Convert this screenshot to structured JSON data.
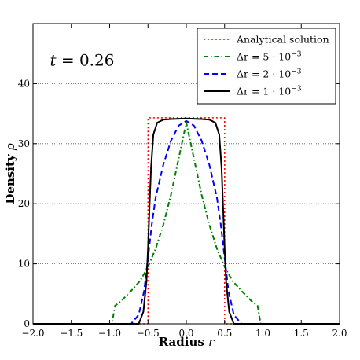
{
  "chart_data": {
    "type": "line",
    "xlabel": "Radius",
    "xlabel_var": "r",
    "ylabel": "Density",
    "ylabel_var": "ρ",
    "xlim": [
      -2.0,
      2.0
    ],
    "ylim": [
      0,
      50
    ],
    "xticks": [
      -2.0,
      -1.5,
      -1.0,
      -0.5,
      0.0,
      0.5,
      1.0,
      1.5,
      2.0
    ],
    "xtick_labels": [
      "−2.0",
      "−1.5",
      "−1.0",
      "−0.5",
      "0.0",
      "0.5",
      "1.0",
      "1.5",
      "2.0"
    ],
    "yticks": [
      0,
      10,
      20,
      30,
      40
    ],
    "ytick_labels": [
      "0",
      "10",
      "20",
      "30",
      "40"
    ],
    "grid": "y-dotted",
    "legend_position": "top-right",
    "annotation": {
      "text": "t = 0.26",
      "var": "t",
      "rest": " = 0.26",
      "x": -1.78,
      "y": 43
    },
    "series": [
      {
        "name": "Analytical solution",
        "color": "#ff0000",
        "style": "dotted",
        "x": [
          -2.0,
          -0.5,
          -0.5,
          0.5,
          0.5,
          2.0
        ],
        "y": [
          0,
          0,
          34.3,
          34.3,
          0,
          0
        ]
      },
      {
        "name": "Δr = 5 · 10⁻³",
        "label_base": "Δr = 5 · 10",
        "label_exp": "−3",
        "color": "#007f00",
        "style": "dashdot",
        "x": [
          -2.0,
          -0.97,
          -0.93,
          -0.85,
          -0.72,
          -0.6,
          -0.5,
          -0.4,
          -0.3,
          -0.2,
          -0.1,
          0.0,
          0.1,
          0.2,
          0.3,
          0.4,
          0.5,
          0.6,
          0.72,
          0.85,
          0.93,
          0.97,
          2.0
        ],
        "y": [
          0,
          0,
          3.0,
          3.8,
          5.5,
          7.2,
          9.5,
          12.5,
          16.5,
          21.5,
          27.5,
          33.5,
          27.5,
          21.5,
          16.5,
          12.5,
          9.5,
          7.2,
          5.5,
          3.8,
          3.0,
          0,
          0
        ]
      },
      {
        "name": "Δr = 2 · 10⁻³",
        "label_base": "Δr = 2 · 10",
        "label_exp": "−3",
        "color": "#0000ff",
        "style": "dashed",
        "x": [
          -2.0,
          -0.72,
          -0.62,
          -0.55,
          -0.5,
          -0.45,
          -0.4,
          -0.3,
          -0.2,
          -0.1,
          0.0,
          0.1,
          0.2,
          0.3,
          0.4,
          0.45,
          0.5,
          0.55,
          0.62,
          0.72,
          2.0
        ],
        "y": [
          0,
          0,
          1.5,
          5.5,
          11,
          16.5,
          21,
          26.5,
          30.5,
          33,
          33.8,
          33,
          30.5,
          26.5,
          21,
          16.5,
          11,
          5.5,
          1.5,
          0,
          0
        ]
      },
      {
        "name": "Δr = 1 · 10⁻³",
        "label_base": "Δr = 1 · 10",
        "label_exp": "−3",
        "color": "#000000",
        "style": "solid",
        "x": [
          -2.0,
          -0.62,
          -0.56,
          -0.52,
          -0.5,
          -0.48,
          -0.46,
          -0.43,
          -0.38,
          -0.3,
          -0.2,
          0.0,
          0.2,
          0.3,
          0.38,
          0.43,
          0.46,
          0.48,
          0.5,
          0.52,
          0.56,
          0.62,
          2.0
        ],
        "y": [
          0,
          0,
          2.0,
          7.0,
          12.5,
          19.5,
          26.0,
          31.5,
          33.5,
          34.0,
          34.1,
          34.2,
          34.1,
          34.0,
          33.5,
          31.5,
          26.0,
          19.5,
          12.5,
          7.0,
          2.0,
          0,
          0
        ]
      }
    ]
  }
}
